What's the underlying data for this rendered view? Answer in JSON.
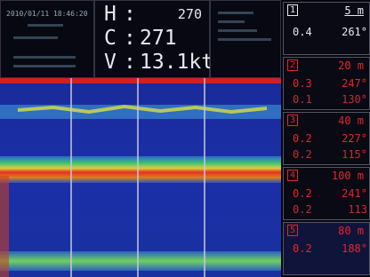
{
  "header": {
    "timestamp": "2010/01/11 18:46:20",
    "readouts": [
      {
        "label": "H",
        "separator": ":",
        "value": "270"
      },
      {
        "label": "C",
        "separator": ":",
        "value": "271"
      },
      {
        "label": "V",
        "separator": ":",
        "value": "13.1kt"
      }
    ]
  },
  "layers": [
    {
      "index": "1",
      "depth": "5 m",
      "rows": [
        {
          "speed": "0.4",
          "direction": "261°"
        }
      ]
    },
    {
      "index": "2",
      "depth": "20 m",
      "rows": [
        {
          "speed": "0.3",
          "direction": "247°"
        },
        {
          "speed": "0.1",
          "direction": "130°"
        }
      ]
    },
    {
      "index": "3",
      "depth": "40 m",
      "rows": [
        {
          "speed": "0.2",
          "direction": "227°"
        },
        {
          "speed": "0.2",
          "direction": "115°"
        }
      ]
    },
    {
      "index": "4",
      "depth": "100 m",
      "rows": [
        {
          "speed": "0.2",
          "direction": "241°"
        },
        {
          "speed": "0.2",
          "direction": "113"
        }
      ]
    },
    {
      "index": "5",
      "depth": "80 m",
      "rows": [
        {
          "speed": "0.2",
          "direction": "188°"
        }
      ]
    }
  ]
}
